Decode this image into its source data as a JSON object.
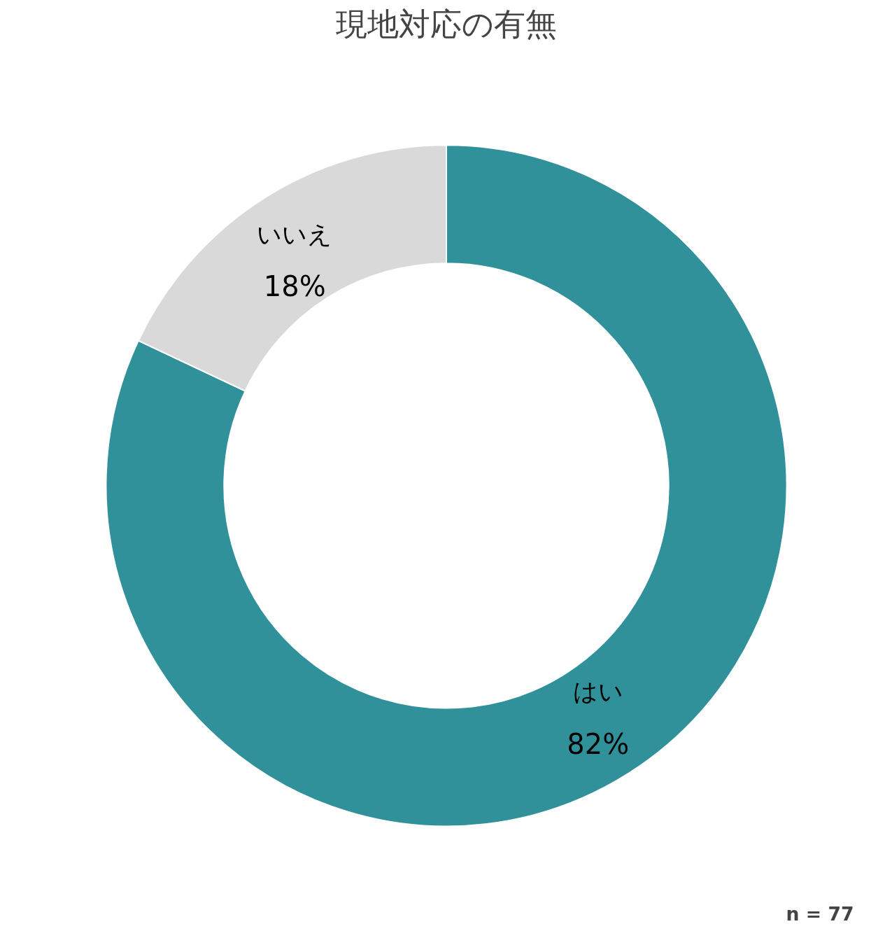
{
  "chart_data": {
    "type": "donut",
    "title": "現地対応の有無",
    "categories": [
      "はい",
      "いいえ"
    ],
    "values": [
      82,
      18
    ],
    "value_labels": [
      "82%",
      "18%"
    ],
    "colors": [
      "#31919a",
      "#d9d9d9"
    ],
    "annotations": [
      "n = 77"
    ]
  }
}
